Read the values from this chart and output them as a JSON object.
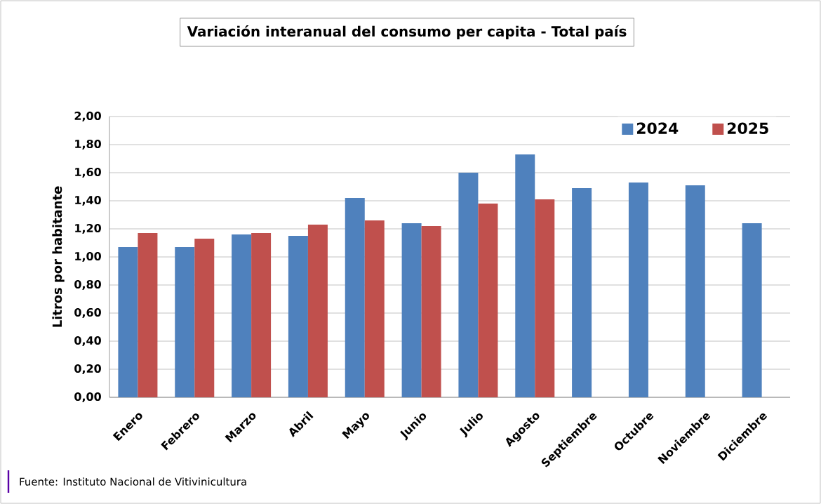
{
  "chart_data": {
    "type": "bar",
    "title": "Variación interanual del consumo per capita - Total país",
    "ylabel": "Litros por  habitante",
    "categories": [
      "Enero",
      "Febrero",
      "Marzo",
      "Abril",
      "Mayo",
      "Junio",
      "Julio",
      "Agosto",
      "Septiembre",
      "Octubre",
      "Noviembre",
      "Diciembre"
    ],
    "series": [
      {
        "name": "2024",
        "color": "#4f81bd",
        "values": [
          1.07,
          1.07,
          1.16,
          1.15,
          1.42,
          1.24,
          1.6,
          1.73,
          1.49,
          1.53,
          1.51,
          1.24
        ]
      },
      {
        "name": "2025",
        "color": "#c0504d",
        "values": [
          1.17,
          1.13,
          1.17,
          1.23,
          1.26,
          1.22,
          1.38,
          1.41,
          null,
          null,
          null,
          null
        ]
      }
    ],
    "ylim": [
      0,
      2
    ],
    "yticks": [
      {
        "value": 0,
        "label": "0,00"
      },
      {
        "value": 0.2,
        "label": "0,20"
      },
      {
        "value": 0.4,
        "label": "0,40"
      },
      {
        "value": 0.6,
        "label": "0,60"
      },
      {
        "value": 0.8,
        "label": "0,80"
      },
      {
        "value": 1.0,
        "label": "1,00"
      },
      {
        "value": 1.2,
        "label": "1,20"
      },
      {
        "value": 1.4,
        "label": "1,40"
      },
      {
        "value": 1.6,
        "label": "1,60"
      },
      {
        "value": 1.8,
        "label": "1,80"
      },
      {
        "value": 2.0,
        "label": "2,00"
      }
    ],
    "grid": "y",
    "legend": "top right",
    "annotations": [
      "Fuente: Instituto Nacional  de Vitivinicultura"
    ]
  }
}
